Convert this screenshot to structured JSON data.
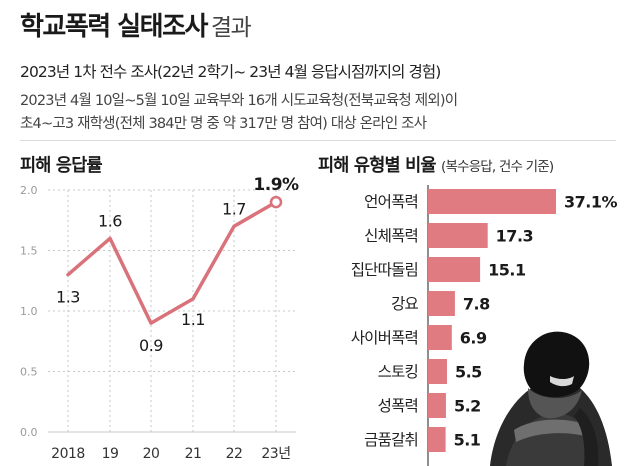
{
  "header": {
    "title_main": "학교폭력 실태조사",
    "title_light": "결과",
    "subtitle": "2023년 1차 전수 조사(22년 2학기~ 23년 4월 응답시점까지의 경험)",
    "desc_line1": "2023년 4월 10일~5월 10일 교육부와 16개 시도교육청(전북교육청 제외)이",
    "desc_line2": "초4~고3 재학생(전체 384만 명 중 약 317만 명 참여) 대상 온라인 조사"
  },
  "colors": {
    "accent": "#d9727a",
    "bar": "#e07b82",
    "grid": "#c8c8c8",
    "axis_text": "#9a9a9a"
  },
  "chart_data": [
    {
      "type": "line",
      "title": "피해 응답률",
      "x": [
        "2018",
        "19",
        "20",
        "21",
        "22",
        "23년"
      ],
      "values": [
        1.3,
        1.6,
        0.9,
        1.1,
        1.7,
        1.9
      ],
      "value_labels": [
        "1.3",
        "1.6",
        "0.9",
        "1.1",
        "1.7",
        "1.9%"
      ],
      "yticks": [
        "0.0",
        "0.5",
        "1.0",
        "1.5",
        "2.0"
      ],
      "ylim": [
        0,
        2.0
      ],
      "grid": true,
      "highlight_last": true
    },
    {
      "type": "bar",
      "orientation": "horizontal",
      "title": "피해 유형별 비율",
      "title_note": "(복수응답, 건수 기준)",
      "categories": [
        "언어폭력",
        "신체폭력",
        "집단따돌림",
        "강요",
        "사이버폭력",
        "스토킹",
        "성폭력",
        "금품갈취"
      ],
      "values": [
        37.1,
        17.3,
        15.1,
        7.8,
        6.9,
        5.5,
        5.2,
        5.1
      ],
      "value_labels": [
        "37.1%",
        "17.3",
        "15.1",
        "7.8",
        "6.9",
        "5.5",
        "5.2",
        "5.1"
      ]
    }
  ]
}
